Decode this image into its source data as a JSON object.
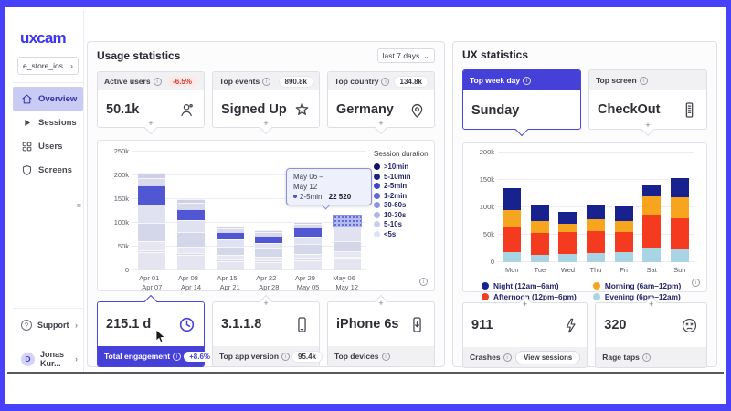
{
  "app": {
    "frame_color": "#4741fb",
    "accent": "#4540d8"
  },
  "sidebar": {
    "logo": "uxcam",
    "project": "e_store_ios",
    "items": [
      {
        "label": "Overview",
        "icon": "home-icon",
        "active": true
      },
      {
        "label": "Sessions",
        "icon": "play-icon",
        "active": false
      },
      {
        "label": "Users",
        "icon": "grid-icon",
        "active": false
      },
      {
        "label": "Screens",
        "icon": "shield-icon",
        "active": false
      }
    ],
    "support_label": "Support",
    "user": {
      "initial": "D",
      "name": "Jonas Kur..."
    }
  },
  "usage": {
    "title": "Usage statistics",
    "period": "last 7 days",
    "top_cards": [
      {
        "label": "Active users",
        "badge": "-6.5%",
        "value": "50.1k",
        "icon": "user-icon"
      },
      {
        "label": "Top events",
        "badge": "890.8k",
        "value": "Signed Up",
        "icon": "star-icon"
      },
      {
        "label": "Top country",
        "badge": "134.8k",
        "value": "Germany",
        "icon": "pin-icon"
      }
    ],
    "bottom_cards": [
      {
        "value": "215.1 d",
        "label": "Total engagement",
        "badge": "+8.6%",
        "icon": "clock-icon",
        "selected": true
      },
      {
        "value": "3.1.1.8",
        "label": "Top app version",
        "badge": "95.4k",
        "icon": "phone-icon"
      },
      {
        "value": "iPhone 6s",
        "label": "Top devices",
        "icon": "phone-download-icon"
      }
    ],
    "tooltip": {
      "date_line1": "May 06 –",
      "date_line2": "May 12",
      "series": "2-5min:",
      "value": "22 520"
    }
  },
  "ux": {
    "title": "UX statistics",
    "top_cards": [
      {
        "label": "Top week day",
        "value": "Sunday",
        "selected": true
      },
      {
        "label": "Top screen",
        "value": "CheckOut",
        "icon": "phone-list-icon"
      }
    ],
    "bottom_cards": [
      {
        "value": "911",
        "label": "Crashes",
        "action": "View sessions",
        "icon": "bolt-icon"
      },
      {
        "value": "320",
        "label": "Rage taps",
        "icon": "dizzy-face-icon"
      }
    ]
  },
  "chart_data": [
    {
      "type": "bar",
      "stacked": true,
      "legend_title": "Session duration",
      "legend_position": "right",
      "grid": true,
      "categories": [
        [
          "Apr 01 –",
          "Apr 07"
        ],
        [
          "Apr 08 –",
          "Apr 14"
        ],
        [
          "Apr 15 –",
          "Apr 21"
        ],
        [
          "Apr 22 –",
          "Apr 28"
        ],
        [
          "Apr 29 –",
          "May 05"
        ],
        [
          "May 06 –",
          "May 12"
        ]
      ],
      "ylim": [
        0,
        250000
      ],
      "yticks": [
        {
          "v": 0,
          "label": "0"
        },
        {
          "v": 50000,
          "label": "50k"
        },
        {
          "v": 100000,
          "label": "100k"
        },
        {
          "v": 150000,
          "label": "150k"
        },
        {
          "v": 200000,
          "label": "200k"
        },
        {
          "v": 250000,
          "label": "250k"
        }
      ],
      "segment_hairline": true,
      "series": [
        {
          "name": "<5s",
          "color": "#e4e5f0",
          "legend_color": "#dfe1f8",
          "values": [
            38000,
            32000,
            20000,
            18000,
            22000,
            25000
          ]
        },
        {
          "name": "5-10s",
          "color": "#d8daea",
          "legend_color": "#c9cdf3",
          "values": [
            5000,
            4000,
            3000,
            3000,
            3000,
            4000
          ]
        },
        {
          "name": "10-30s",
          "color": "#e6e7f2",
          "legend_color": "#aeb4ec",
          "values": [
            18000,
            14000,
            9000,
            8000,
            10000,
            11000
          ]
        },
        {
          "name": "30-60s",
          "color": "#d4d6e9",
          "legend_color": "#8d95e2",
          "values": [
            40000,
            30000,
            18000,
            17000,
            20000,
            22000
          ]
        },
        {
          "name": "1-2min",
          "color": "#e0e2f1",
          "legend_color": "#6069d4",
          "values": [
            37000,
            25000,
            15000,
            12000,
            15000,
            30000
          ]
        },
        {
          "name": "2-5min",
          "color": "#5157d2",
          "legend_color": "#3f47c4",
          "values": [
            40000,
            23000,
            15000,
            15000,
            20000,
            22520
          ]
        },
        {
          "name": "5-10min",
          "color": "#d9dbec",
          "legend_color": "#1d2384",
          "values": [
            17000,
            14000,
            8000,
            7000,
            8000,
            1000
          ]
        },
        {
          "name": ">10min",
          "color": "#cdd0e6",
          "legend_color": "#10136e",
          "values": [
            10000,
            8000,
            4000,
            5000,
            5000,
            500
          ]
        }
      ],
      "legend_order": "reversed-of-series",
      "highlight": {
        "series": "2-5min",
        "category_index": 5,
        "tooltip_value": 22520
      }
    },
    {
      "type": "bar",
      "stacked": true,
      "legend_position": "bottom",
      "grid": true,
      "categories": [
        "Mon",
        "Tue",
        "Wed",
        "Thu",
        "Fri",
        "Sat",
        "Sun"
      ],
      "ylim": [
        0,
        200000
      ],
      "yticks": [
        {
          "v": 0,
          "label": "0"
        },
        {
          "v": 50000,
          "label": "50k"
        },
        {
          "v": 100000,
          "label": "100k"
        },
        {
          "v": 150000,
          "label": "150k"
        },
        {
          "v": 200000,
          "label": "200k"
        }
      ],
      "series": [
        {
          "name": "Evening (6pm–12am)",
          "color": "#a9d4e3",
          "values": [
            18000,
            14000,
            15000,
            16000,
            19000,
            26000,
            23000
          ]
        },
        {
          "name": "Afternoon (12pm–6pm)",
          "color": "#f43b20",
          "values": [
            45000,
            40000,
            40000,
            40000,
            36000,
            60000,
            57000
          ]
        },
        {
          "name": "Morning (6am–12pm)",
          "color": "#f7a51f",
          "values": [
            32000,
            21000,
            15000,
            22000,
            20000,
            34000,
            38000
          ]
        },
        {
          "name": "Night (12am–6am)",
          "color": "#18228f",
          "values": [
            40000,
            29000,
            22000,
            25000,
            26000,
            20000,
            35000
          ]
        }
      ],
      "legend": [
        {
          "name": "Night (12am–6am)",
          "color": "#18228f"
        },
        {
          "name": "Morning (6am–12pm)",
          "color": "#f7a51f"
        },
        {
          "name": "Afternoon (12pm–6pm)",
          "color": "#f43b20"
        },
        {
          "name": "Evening (6pm–12am)",
          "color": "#a9d4e3"
        }
      ]
    }
  ]
}
